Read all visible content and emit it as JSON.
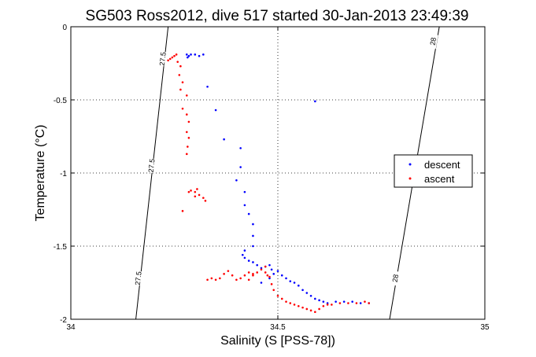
{
  "chart_data": {
    "type": "scatter",
    "title": "SG503 Ross2012, dive 517 started 30-Jan-2013 23:49:39",
    "xlabel": "Salinity (S [PSS-78])",
    "ylabel": "Temperature (°C)",
    "xlim": [
      34,
      35
    ],
    "ylim": [
      -2,
      0
    ],
    "xticks": [
      34,
      34.5,
      35
    ],
    "xtick_labels": [
      "34",
      "34.5",
      "35"
    ],
    "yticks": [
      0,
      -0.5,
      -1,
      -1.5,
      -2
    ],
    "ytick_labels": [
      "0",
      "-0.5",
      "-1",
      "-1.5",
      "-2"
    ],
    "grid": true,
    "legend_position": "right",
    "isopycnals": [
      {
        "label": "27.5",
        "points": [
          [
            34.235,
            0
          ],
          [
            34.157,
            -2
          ]
        ],
        "labels": [
          {
            "text": "27.5",
            "x": 34.222,
            "y": -0.22
          },
          {
            "text": "27.5",
            "x": 34.195,
            "y": -0.95
          },
          {
            "text": "27.5",
            "x": 34.163,
            "y": -1.72
          }
        ]
      },
      {
        "label": "28",
        "points": [
          [
            34.89,
            0
          ],
          [
            34.77,
            -2
          ]
        ],
        "labels": [
          {
            "text": "28",
            "x": 34.875,
            "y": -0.1
          },
          {
            "text": "28",
            "x": 34.784,
            "y": -1.72
          }
        ]
      }
    ],
    "series": [
      {
        "name": "descent",
        "color": "#0000ff",
        "points": [
          [
            34.28,
            -0.19
          ],
          [
            34.285,
            -0.2
          ],
          [
            34.282,
            -0.21
          ],
          [
            34.29,
            -0.19
          ],
          [
            34.3,
            -0.19
          ],
          [
            34.31,
            -0.2
          ],
          [
            34.32,
            -0.19
          ],
          [
            34.33,
            -0.41
          ],
          [
            34.35,
            -0.57
          ],
          [
            34.37,
            -0.77
          ],
          [
            34.41,
            -0.83
          ],
          [
            34.41,
            -0.96
          ],
          [
            34.4,
            -1.05
          ],
          [
            34.42,
            -1.13
          ],
          [
            34.42,
            -1.22
          ],
          [
            34.43,
            -1.28
          ],
          [
            34.44,
            -1.35
          ],
          [
            34.44,
            -1.43
          ],
          [
            34.44,
            -1.5
          ],
          [
            34.42,
            -1.53
          ],
          [
            34.415,
            -1.56
          ],
          [
            34.42,
            -1.58
          ],
          [
            34.43,
            -1.6
          ],
          [
            34.44,
            -1.61
          ],
          [
            34.45,
            -1.63
          ],
          [
            34.46,
            -1.65
          ],
          [
            34.47,
            -1.64
          ],
          [
            34.48,
            -1.63
          ],
          [
            34.485,
            -1.66
          ],
          [
            34.49,
            -1.69
          ],
          [
            34.5,
            -1.67
          ],
          [
            34.51,
            -1.7
          ],
          [
            34.52,
            -1.72
          ],
          [
            34.53,
            -1.74
          ],
          [
            34.54,
            -1.75
          ],
          [
            34.55,
            -1.77
          ],
          [
            34.56,
            -1.8
          ],
          [
            34.57,
            -1.82
          ],
          [
            34.58,
            -1.84
          ],
          [
            34.59,
            -1.86
          ],
          [
            34.6,
            -1.87
          ],
          [
            34.61,
            -1.88
          ],
          [
            34.62,
            -1.89
          ],
          [
            34.64,
            -1.88
          ],
          [
            34.66,
            -1.88
          ],
          [
            34.68,
            -1.88
          ],
          [
            34.7,
            -1.89
          ],
          [
            34.72,
            -1.89
          ],
          [
            34.59,
            -0.51
          ],
          [
            34.48,
            -1.72
          ],
          [
            34.46,
            -1.75
          ]
        ]
      },
      {
        "name": "ascent",
        "color": "#ff0000",
        "points": [
          [
            34.235,
            -0.23
          ],
          [
            34.24,
            -0.22
          ],
          [
            34.245,
            -0.21
          ],
          [
            34.25,
            -0.2
          ],
          [
            34.255,
            -0.19
          ],
          [
            34.258,
            -0.24
          ],
          [
            34.265,
            -0.27
          ],
          [
            34.262,
            -0.33
          ],
          [
            34.27,
            -0.38
          ],
          [
            34.265,
            -0.43
          ],
          [
            34.28,
            -0.47
          ],
          [
            34.27,
            -0.56
          ],
          [
            34.28,
            -0.6
          ],
          [
            34.285,
            -0.65
          ],
          [
            34.28,
            -0.72
          ],
          [
            34.285,
            -0.76
          ],
          [
            34.282,
            -0.82
          ],
          [
            34.28,
            -0.87
          ],
          [
            34.285,
            -1.13
          ],
          [
            34.29,
            -1.12
          ],
          [
            34.3,
            -1.13
          ],
          [
            34.305,
            -1.11
          ],
          [
            34.31,
            -1.15
          ],
          [
            34.32,
            -1.17
          ],
          [
            34.325,
            -1.19
          ],
          [
            34.3,
            -1.16
          ],
          [
            34.27,
            -1.26
          ],
          [
            34.33,
            -1.73
          ],
          [
            34.34,
            -1.72
          ],
          [
            34.35,
            -1.73
          ],
          [
            34.36,
            -1.72
          ],
          [
            34.37,
            -1.69
          ],
          [
            34.38,
            -1.67
          ],
          [
            34.39,
            -1.7
          ],
          [
            34.4,
            -1.73
          ],
          [
            34.41,
            -1.72
          ],
          [
            34.42,
            -1.7
          ],
          [
            34.43,
            -1.68
          ],
          [
            34.44,
            -1.69
          ],
          [
            34.45,
            -1.68
          ],
          [
            34.46,
            -1.66
          ],
          [
            34.47,
            -1.68
          ],
          [
            34.48,
            -1.71
          ],
          [
            34.485,
            -1.76
          ],
          [
            34.49,
            -1.8
          ],
          [
            34.5,
            -1.84
          ],
          [
            34.51,
            -1.86
          ],
          [
            34.52,
            -1.88
          ],
          [
            34.53,
            -1.89
          ],
          [
            34.54,
            -1.9
          ],
          [
            34.55,
            -1.91
          ],
          [
            34.56,
            -1.92
          ],
          [
            34.57,
            -1.93
          ],
          [
            34.58,
            -1.94
          ],
          [
            34.59,
            -1.95
          ],
          [
            34.6,
            -1.93
          ],
          [
            34.61,
            -1.91
          ],
          [
            34.62,
            -1.9
          ],
          [
            34.63,
            -1.9
          ],
          [
            34.65,
            -1.89
          ],
          [
            34.67,
            -1.89
          ],
          [
            34.69,
            -1.89
          ],
          [
            34.71,
            -1.88
          ],
          [
            34.72,
            -1.89
          ],
          [
            34.47,
            -1.64
          ],
          [
            34.475,
            -1.7
          ],
          [
            34.44,
            -1.7
          ],
          [
            34.43,
            -1.73
          ]
        ]
      }
    ]
  }
}
